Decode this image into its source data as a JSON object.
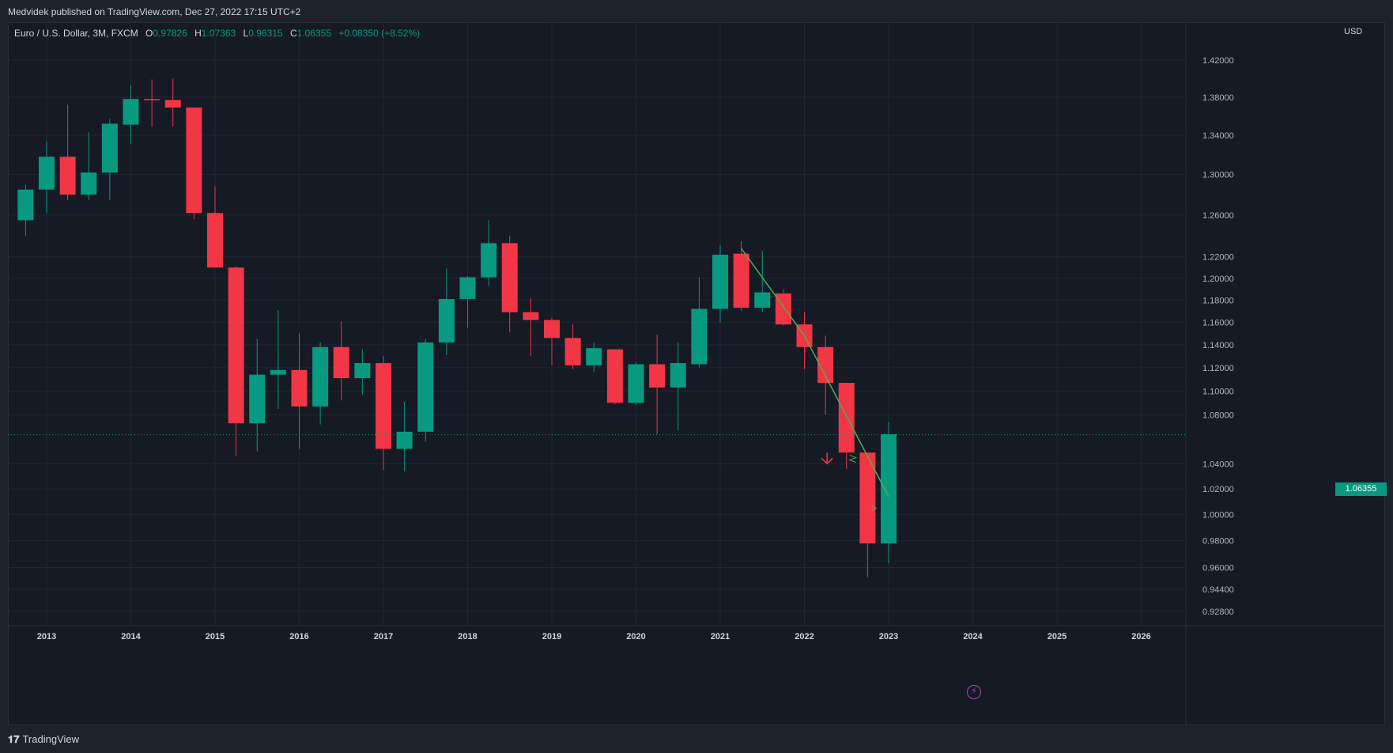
{
  "header": {
    "published": "Medvidek published on TradingView.com, Dec 27, 2022 17:15 UTC+2"
  },
  "legend": {
    "symbol": "Euro / U.S. Dollar, 3M, FXCM",
    "o_label": "O",
    "o_value": "0.97826",
    "h_label": "H",
    "h_value": "1.07363",
    "l_label": "L",
    "l_value": "0.96315",
    "c_label": "C",
    "c_value": "1.06355",
    "change": "+0.08350 (+8.52%)"
  },
  "axis": {
    "currency": "USD",
    "last_price": "1.06355"
  },
  "footer": {
    "brand": "TradingView",
    "brand_icon": "tradingview-logo-icon"
  },
  "colors": {
    "up": "#089981",
    "down": "#f23645",
    "background": "#161a25",
    "grid": "#232632",
    "trend": "#4caf50"
  },
  "chart_data": {
    "type": "candlestick",
    "title": "Euro / U.S. Dollar, 3M, FXCM",
    "currency": "USD",
    "ylim": [
      0.912,
      1.455
    ],
    "y_ticks": [
      "1.42000",
      "1.38000",
      "1.34000",
      "1.30000",
      "1.26000",
      "1.22000",
      "1.20000",
      "1.18000",
      "1.16000",
      "1.14000",
      "1.12000",
      "1.10000",
      "1.08000",
      "1.04000",
      "1.02000",
      "1.00000",
      "0.98000",
      "0.96000",
      "0.94400",
      "0.92800"
    ],
    "x_ticks": [
      "2013",
      "2014",
      "2015",
      "2016",
      "2017",
      "2018",
      "2019",
      "2020",
      "2021",
      "2022",
      "2023",
      "2024",
      "2025",
      "2026"
    ],
    "last_price": 1.06355,
    "candles": [
      {
        "t": 2012.75,
        "o": 1.255,
        "h": 1.29,
        "l": 1.24,
        "c": 1.285
      },
      {
        "t": 2013.0,
        "o": 1.285,
        "h": 1.334,
        "l": 1.262,
        "c": 1.318
      },
      {
        "t": 2013.25,
        "o": 1.318,
        "h": 1.372,
        "l": 1.275,
        "c": 1.28
      },
      {
        "t": 2013.5,
        "o": 1.28,
        "h": 1.343,
        "l": 1.275,
        "c": 1.302
      },
      {
        "t": 2013.75,
        "o": 1.302,
        "h": 1.357,
        "l": 1.275,
        "c": 1.352
      },
      {
        "t": 2014.0,
        "o": 1.351,
        "h": 1.393,
        "l": 1.331,
        "c": 1.378
      },
      {
        "t": 2014.25,
        "o": 1.378,
        "h": 1.399,
        "l": 1.349,
        "c": 1.377
      },
      {
        "t": 2014.5,
        "o": 1.377,
        "h": 1.4,
        "l": 1.349,
        "c": 1.369
      },
      {
        "t": 2014.75,
        "o": 1.369,
        "h": 1.369,
        "l": 1.256,
        "c": 1.262
      },
      {
        "t": 2015.0,
        "o": 1.262,
        "h": 1.288,
        "l": 1.211,
        "c": 1.21
      },
      {
        "t": 2015.25,
        "o": 1.21,
        "h": 1.211,
        "l": 1.046,
        "c": 1.073
      },
      {
        "t": 2015.5,
        "o": 1.073,
        "h": 1.145,
        "l": 1.05,
        "c": 1.114
      },
      {
        "t": 2015.75,
        "o": 1.114,
        "h": 1.171,
        "l": 1.085,
        "c": 1.118
      },
      {
        "t": 2016.0,
        "o": 1.118,
        "h": 1.15,
        "l": 1.052,
        "c": 1.087
      },
      {
        "t": 2016.25,
        "o": 1.087,
        "h": 1.142,
        "l": 1.072,
        "c": 1.138
      },
      {
        "t": 2016.5,
        "o": 1.138,
        "h": 1.161,
        "l": 1.092,
        "c": 1.111
      },
      {
        "t": 2016.75,
        "o": 1.111,
        "h": 1.136,
        "l": 1.097,
        "c": 1.124
      },
      {
        "t": 2017.0,
        "o": 1.124,
        "h": 1.13,
        "l": 1.035,
        "c": 1.052
      },
      {
        "t": 2017.25,
        "o": 1.052,
        "h": 1.091,
        "l": 1.034,
        "c": 1.066
      },
      {
        "t": 2017.5,
        "o": 1.066,
        "h": 1.145,
        "l": 1.058,
        "c": 1.142
      },
      {
        "t": 2017.75,
        "o": 1.142,
        "h": 1.209,
        "l": 1.131,
        "c": 1.181
      },
      {
        "t": 2018.0,
        "o": 1.181,
        "h": 1.202,
        "l": 1.155,
        "c": 1.201
      },
      {
        "t": 2018.25,
        "o": 1.201,
        "h": 1.255,
        "l": 1.193,
        "c": 1.233
      },
      {
        "t": 2018.5,
        "o": 1.233,
        "h": 1.24,
        "l": 1.151,
        "c": 1.169
      },
      {
        "t": 2018.75,
        "o": 1.169,
        "h": 1.182,
        "l": 1.13,
        "c": 1.162
      },
      {
        "t": 2019.0,
        "o": 1.162,
        "h": 1.164,
        "l": 1.122,
        "c": 1.146
      },
      {
        "t": 2019.25,
        "o": 1.146,
        "h": 1.158,
        "l": 1.119,
        "c": 1.122
      },
      {
        "t": 2019.5,
        "o": 1.122,
        "h": 1.142,
        "l": 1.116,
        "c": 1.137
      },
      {
        "t": 2019.75,
        "o": 1.136,
        "h": 1.136,
        "l": 1.089,
        "c": 1.09
      },
      {
        "t": 2020.0,
        "o": 1.09,
        "h": 1.125,
        "l": 1.088,
        "c": 1.123
      },
      {
        "t": 2020.25,
        "o": 1.123,
        "h": 1.149,
        "l": 1.064,
        "c": 1.103
      },
      {
        "t": 2020.5,
        "o": 1.103,
        "h": 1.142,
        "l": 1.067,
        "c": 1.124
      },
      {
        "t": 2020.75,
        "o": 1.123,
        "h": 1.201,
        "l": 1.12,
        "c": 1.172
      },
      {
        "t": 2021.0,
        "o": 1.172,
        "h": 1.231,
        "l": 1.16,
        "c": 1.222
      },
      {
        "t": 2021.25,
        "o": 1.223,
        "h": 1.235,
        "l": 1.17,
        "c": 1.173
      },
      {
        "t": 2021.5,
        "o": 1.173,
        "h": 1.226,
        "l": 1.169,
        "c": 1.187
      },
      {
        "t": 2021.75,
        "o": 1.186,
        "h": 1.19,
        "l": 1.157,
        "c": 1.158
      },
      {
        "t": 2022.0,
        "o": 1.158,
        "h": 1.169,
        "l": 1.119,
        "c": 1.138
      },
      {
        "t": 2022.25,
        "o": 1.138,
        "h": 1.148,
        "l": 1.08,
        "c": 1.107
      },
      {
        "t": 2022.5,
        "o": 1.107,
        "h": 1.107,
        "l": 1.036,
        "c": 1.049
      },
      {
        "t": 2022.75,
        "o": 1.049,
        "h": 1.049,
        "l": 0.953,
        "c": 0.978
      },
      {
        "t": 2023.0,
        "o": 0.978,
        "h": 1.074,
        "l": 0.963,
        "c": 1.064
      }
    ],
    "trendline": [
      {
        "t": 2021.25,
        "v": 1.228
      },
      {
        "t": 2022.0,
        "v": 1.148
      },
      {
        "t": 2023.0,
        "v": 1.014
      }
    ]
  }
}
